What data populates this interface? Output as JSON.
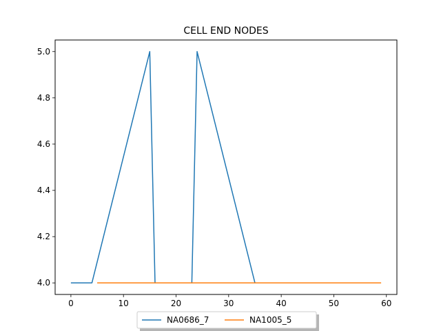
{
  "chart_data": {
    "type": "line",
    "title": "CELL END NODES",
    "xlabel": "",
    "ylabel": "",
    "xlim": [
      -3,
      62
    ],
    "ylim": [
      3.95,
      5.05
    ],
    "xticks": [
      0,
      10,
      20,
      30,
      40,
      50,
      60
    ],
    "yticks": [
      4.0,
      4.2,
      4.4,
      4.6,
      4.8,
      5.0
    ],
    "xtick_labels": [
      "0",
      "10",
      "20",
      "30",
      "40",
      "50",
      "60"
    ],
    "ytick_labels": [
      "4.0",
      "4.2",
      "4.4",
      "4.6",
      "4.8",
      "5.0"
    ],
    "grid": false,
    "legend": {
      "placement": "below-center",
      "columns": 2
    },
    "series": [
      {
        "name": "NA0686_7",
        "color": "#1f77b4",
        "x": [
          0,
          4,
          15,
          16,
          23,
          24,
          35,
          54
        ],
        "y": [
          4.0,
          4.0,
          5.0,
          4.0,
          4.0,
          5.0,
          4.0,
          4.0
        ]
      },
      {
        "name": "NA1005_5",
        "color": "#ff7f0e",
        "x": [
          5,
          59
        ],
        "y": [
          4.0,
          4.0
        ]
      }
    ]
  }
}
